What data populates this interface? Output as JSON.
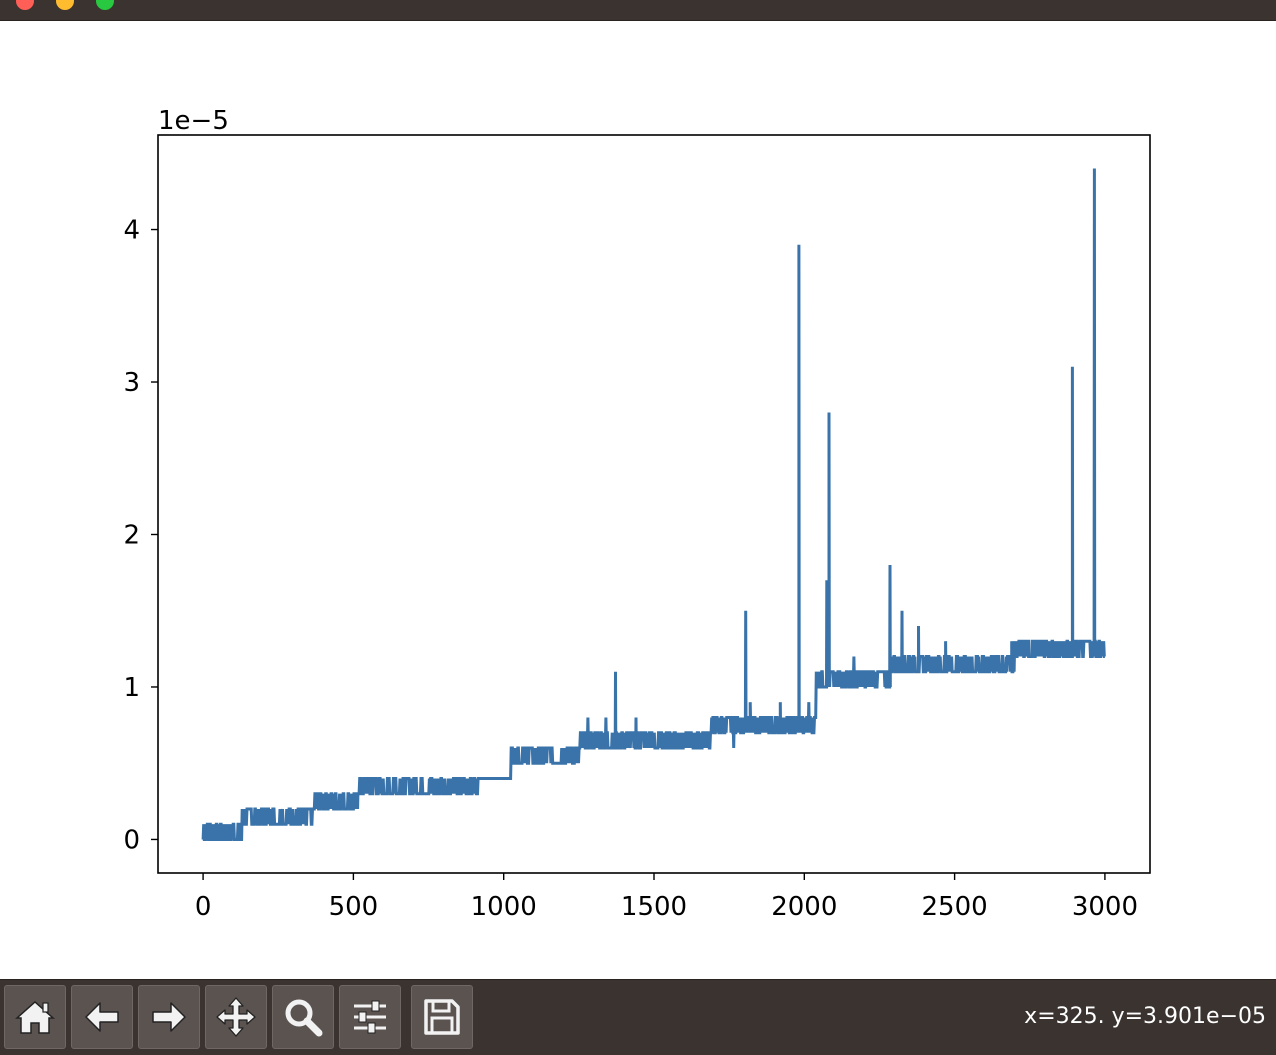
{
  "window": {
    "title": ""
  },
  "toolbar": {
    "buttons": [
      {
        "name": "home-button",
        "icon": "home-icon"
      },
      {
        "name": "back-button",
        "icon": "arrow-left-icon"
      },
      {
        "name": "forward-button",
        "icon": "arrow-right-icon"
      },
      {
        "name": "pan-button",
        "icon": "move-icon"
      },
      {
        "name": "zoom-button",
        "icon": "magnifier-icon"
      },
      {
        "name": "subplots-button",
        "icon": "sliders-icon"
      },
      {
        "name": "save-button",
        "icon": "floppy-disk-icon"
      }
    ],
    "coords": "x=325. y=3.901e−05"
  },
  "chart_data": {
    "type": "line",
    "title": "",
    "xlabel": "",
    "ylabel": "",
    "offset_text": "1e−5",
    "line_color": "#3a73a9",
    "xlim": [
      -150,
      3150
    ],
    "ylim": [
      -0.22,
      4.62
    ],
    "xticks": [
      0,
      500,
      1000,
      1500,
      2000,
      2500,
      3000
    ],
    "xtick_labels": [
      "0",
      "500",
      "1000",
      "1500",
      "2000",
      "2500",
      "3000"
    ],
    "yticks": [
      0,
      1,
      2,
      3,
      4
    ],
    "ytick_labels": [
      "0",
      "1",
      "2",
      "3",
      "4"
    ],
    "grid": false,
    "levels": [
      {
        "x_start": 0,
        "x_end": 130,
        "low": 0.0,
        "high": 0.1
      },
      {
        "x_start": 130,
        "x_end": 370,
        "low": 0.1,
        "high": 0.2
      },
      {
        "x_start": 370,
        "x_end": 515,
        "low": 0.2,
        "high": 0.3
      },
      {
        "x_start": 515,
        "x_end": 915,
        "low": 0.3,
        "high": 0.4
      },
      {
        "x_start": 915,
        "x_end": 1025,
        "low": 0.4,
        "high": 0.4
      },
      {
        "x_start": 1025,
        "x_end": 1255,
        "low": 0.5,
        "high": 0.6
      },
      {
        "x_start": 1255,
        "x_end": 1600,
        "low": 0.6,
        "high": 0.7
      },
      {
        "x_start": 1600,
        "x_end": 1690,
        "low": 0.6,
        "high": 0.7
      },
      {
        "x_start": 1690,
        "x_end": 2040,
        "low": 0.7,
        "high": 0.8
      },
      {
        "x_start": 2040,
        "x_end": 2290,
        "low": 1.0,
        "high": 1.1
      },
      {
        "x_start": 2290,
        "x_end": 2700,
        "low": 1.1,
        "high": 1.2
      },
      {
        "x_start": 2700,
        "x_end": 3000,
        "low": 1.2,
        "high": 1.3
      }
    ],
    "spikes": [
      {
        "x": 1280,
        "y": 0.8
      },
      {
        "x": 1340,
        "y": 0.8
      },
      {
        "x": 1372,
        "y": 1.1
      },
      {
        "x": 1440,
        "y": 0.8
      },
      {
        "x": 1805,
        "y": 1.5
      },
      {
        "x": 1820,
        "y": 0.9
      },
      {
        "x": 1920,
        "y": 0.9
      },
      {
        "x": 1982,
        "y": 3.9
      },
      {
        "x": 2015,
        "y": 0.9
      },
      {
        "x": 2075,
        "y": 1.7
      },
      {
        "x": 2082,
        "y": 2.8
      },
      {
        "x": 2165,
        "y": 1.2
      },
      {
        "x": 2285,
        "y": 1.8
      },
      {
        "x": 2325,
        "y": 1.5
      },
      {
        "x": 2380,
        "y": 1.4
      },
      {
        "x": 2470,
        "y": 1.3
      },
      {
        "x": 2690,
        "y": 1.3
      },
      {
        "x": 2745,
        "y": 1.3
      },
      {
        "x": 2892,
        "y": 3.1
      },
      {
        "x": 2965,
        "y": 4.4
      }
    ],
    "dips": [
      {
        "x": 1205,
        "y": 0.5
      },
      {
        "x": 1240,
        "y": 0.5
      },
      {
        "x": 1765,
        "y": 0.6
      }
    ]
  }
}
